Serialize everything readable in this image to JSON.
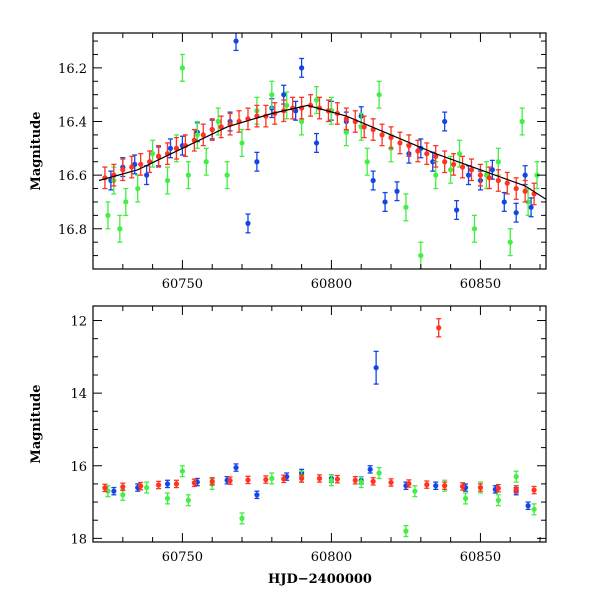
{
  "colors": {
    "blue": "#1446e6",
    "green": "#44ee44",
    "red": "#ff3322",
    "axis": "#000000",
    "background": "#ffffff"
  },
  "chart_data": [
    {
      "type": "scatter",
      "title": "",
      "xlabel": "",
      "ylabel": "Magnitude",
      "xlim": [
        60720,
        60872
      ],
      "ylim": [
        16.95,
        16.07
      ],
      "y_inverted": true,
      "x_ticks": [
        60750,
        60800,
        60850
      ],
      "y_ticks": [
        16.2,
        16.4,
        16.6,
        16.8
      ],
      "grid": false,
      "legend": "none",
      "model_curve": {
        "color": "#000000",
        "x": [
          60722,
          60735,
          60750,
          60765,
          60780,
          60792,
          60805,
          60820,
          60835,
          60850,
          60865,
          60872
        ],
        "y": [
          16.62,
          16.58,
          16.5,
          16.42,
          16.37,
          16.34,
          16.38,
          16.45,
          16.52,
          16.58,
          16.64,
          16.69
        ]
      },
      "series": [
        {
          "color": "#1446e6",
          "error": 0.035,
          "x": [
            60726,
            60730,
            60734,
            60738,
            60742,
            60746,
            60750,
            60755,
            60760,
            60766,
            60768,
            60772,
            60775,
            60780,
            60784,
            60788,
            60790,
            60795,
            60800,
            60805,
            60810,
            60814,
            60818,
            60822,
            60826,
            60830,
            60834,
            60838,
            60842,
            60846,
            60850,
            60854,
            60858,
            60862,
            60865,
            60867
          ],
          "y": [
            16.62,
            16.57,
            16.56,
            16.6,
            16.53,
            16.5,
            16.49,
            16.44,
            16.43,
            16.4,
            16.1,
            16.78,
            16.55,
            16.35,
            16.3,
            16.36,
            16.2,
            16.48,
            16.36,
            16.4,
            16.38,
            16.62,
            16.7,
            16.66,
            16.52,
            16.5,
            16.55,
            16.4,
            16.73,
            16.6,
            16.62,
            16.58,
            16.7,
            16.74,
            16.6,
            16.72
          ]
        },
        {
          "color": "#44ee44",
          "error": 0.05,
          "x": [
            60725,
            60727,
            60729,
            60731,
            60735,
            60740,
            60745,
            60748,
            60750,
            60752,
            60755,
            60758,
            60762,
            60765,
            60770,
            60775,
            60780,
            60785,
            60790,
            60795,
            60800,
            60805,
            60810,
            60812,
            60816,
            60820,
            60825,
            60830,
            60835,
            60840,
            60843,
            60848,
            60852,
            60856,
            60860,
            60864,
            60866,
            60869
          ],
          "y": [
            16.75,
            16.62,
            16.8,
            16.7,
            16.65,
            16.52,
            16.62,
            16.5,
            16.2,
            16.6,
            16.45,
            16.55,
            16.4,
            16.6,
            16.48,
            16.36,
            16.3,
            16.34,
            16.4,
            16.32,
            16.36,
            16.44,
            16.42,
            16.55,
            16.3,
            16.5,
            16.72,
            16.9,
            16.6,
            16.58,
            16.52,
            16.8,
            16.6,
            16.55,
            16.85,
            16.4,
            16.7,
            16.6
          ]
        },
        {
          "color": "#ff3322",
          "error": 0.04,
          "x": [
            60724,
            60727,
            60730,
            60733,
            60736,
            60739,
            60742,
            60745,
            60748,
            60751,
            60754,
            60757,
            60760,
            60763,
            60766,
            60769,
            60772,
            60775,
            60778,
            60781,
            60784,
            60787,
            60790,
            60793,
            60796,
            60799,
            60802,
            60805,
            60808,
            60811,
            60814,
            60817,
            60820,
            60823,
            60826,
            60829,
            60832,
            60835,
            60838,
            60841,
            60844,
            60847,
            60850,
            60853,
            60856,
            60859,
            60862,
            60865,
            60868
          ],
          "y": [
            16.61,
            16.6,
            16.58,
            16.57,
            16.56,
            16.55,
            16.53,
            16.52,
            16.5,
            16.49,
            16.47,
            16.45,
            16.43,
            16.42,
            16.41,
            16.4,
            16.39,
            16.38,
            16.38,
            16.37,
            16.36,
            16.35,
            16.35,
            16.34,
            16.35,
            16.36,
            16.37,
            16.39,
            16.4,
            16.42,
            16.43,
            16.45,
            16.46,
            16.48,
            16.49,
            16.51,
            16.52,
            16.53,
            16.55,
            16.56,
            16.57,
            16.58,
            16.6,
            16.61,
            16.62,
            16.63,
            16.65,
            16.66,
            16.67
          ]
        }
      ]
    },
    {
      "type": "scatter",
      "title": "",
      "xlabel": "HJD−2400000",
      "ylabel": "Magnitude",
      "xlim": [
        60720,
        60872
      ],
      "ylim": [
        18.1,
        11.6
      ],
      "y_inverted": true,
      "x_ticks": [
        60750,
        60800,
        60850
      ],
      "y_ticks": [
        12,
        14,
        16,
        18
      ],
      "grid": false,
      "legend": "none",
      "series": [
        {
          "color": "#1446e6",
          "error": 0.1,
          "x": [
            60727,
            60735,
            60745,
            60755,
            60765,
            60768,
            60775,
            60785,
            60790,
            60800,
            60810,
            60813,
            60815,
            60825,
            60835,
            60845,
            60855,
            60862,
            60866
          ],
          "y": [
            16.7,
            16.6,
            16.5,
            16.45,
            16.4,
            16.05,
            16.8,
            16.3,
            16.2,
            16.35,
            16.4,
            16.1,
            13.3,
            16.55,
            16.55,
            16.6,
            16.65,
            16.7,
            17.1
          ],
          "error_override": {
            "12": 0.45
          }
        },
        {
          "color": "#44ee44",
          "error": 0.15,
          "x": [
            60725,
            60730,
            60738,
            60745,
            60750,
            60752,
            60760,
            60770,
            60780,
            60790,
            60800,
            60810,
            60816,
            60825,
            60828,
            60838,
            60845,
            60850,
            60856,
            60862,
            60868
          ],
          "y": [
            16.7,
            16.8,
            16.6,
            16.9,
            16.15,
            16.95,
            16.5,
            17.45,
            16.35,
            16.3,
            16.4,
            16.45,
            16.2,
            17.8,
            16.7,
            16.55,
            16.9,
            16.6,
            16.95,
            16.3,
            17.2
          ]
        },
        {
          "color": "#ff3322",
          "error": 0.1,
          "x": [
            60724,
            60730,
            60736,
            60742,
            60748,
            60754,
            60760,
            60766,
            60772,
            60778,
            60784,
            60790,
            60796,
            60802,
            60808,
            60814,
            60820,
            60826,
            60832,
            60836,
            60838,
            60844,
            60850,
            60856,
            60862,
            60868
          ],
          "y": [
            16.61,
            16.58,
            16.56,
            16.53,
            16.5,
            16.47,
            16.43,
            16.41,
            16.39,
            16.38,
            16.36,
            16.35,
            16.35,
            16.37,
            16.4,
            16.43,
            16.46,
            16.49,
            16.52,
            12.2,
            16.55,
            16.57,
            16.6,
            16.62,
            16.65,
            16.67
          ],
          "error_override": {
            "19": 0.25
          }
        }
      ]
    }
  ],
  "axis_labels": {
    "top_ylabel": "Magnitude",
    "bottom_ylabel": "Magnitude",
    "bottom_xlabel": "HJD−2400000"
  }
}
